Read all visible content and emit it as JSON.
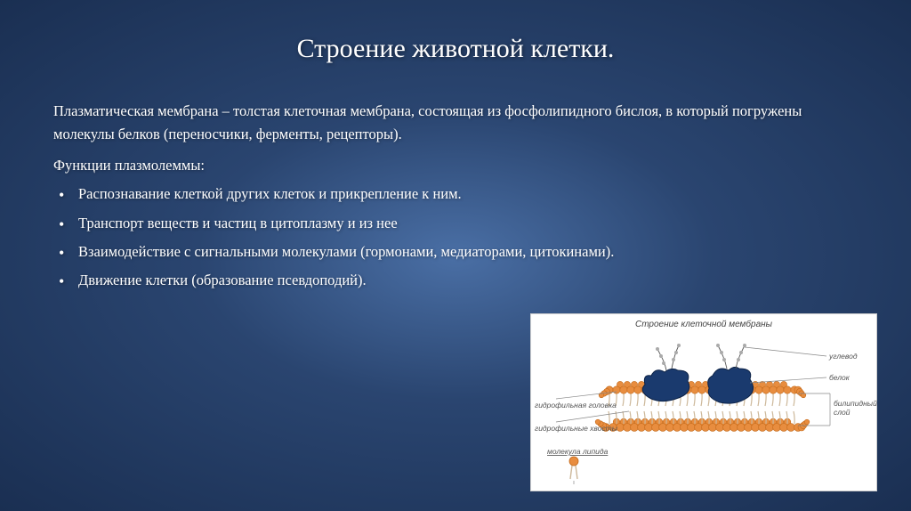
{
  "title": "Строение животной клетки.",
  "paragraph": "Плазматическая мембрана – толстая клеточная мембрана, состоящая из фосфолипидного бислоя, в который погружены молекулы белков (переносчики, ферменты, рецепторы).",
  "functions_label": "Функции плазмолеммы:",
  "bullets": [
    "Распознавание клеткой других клеток и прикрепление к ним.",
    "Транспорт веществ и частиц в цитоплазму и из нее",
    "Взаимодействие с сигнальными молекулами (гормонами, медиаторами, цитокинами).",
    "Движение клетки (образование псевдоподий)."
  ],
  "diagram": {
    "title": "Строение клеточной мембраны",
    "labels": {
      "carb": "углевод",
      "protein": "белок",
      "hydro_head": "гидрофильная головка",
      "hydro_tail": "гидрофильные хвосты",
      "bilipid": "билипидный слой",
      "molecule": "молекула липида"
    },
    "colors": {
      "lipid_head": "#e88d3f",
      "lipid_head_stroke": "#c46a1a",
      "tail": "#cdb89a",
      "protein": "#1a3a6e",
      "protein_stroke": "#0d2347",
      "carb_line": "#555555",
      "carb_dot": "#888888",
      "bg": "#ffffff"
    }
  },
  "style": {
    "title_fontsize": 30,
    "body_fontsize": 16.5,
    "text_color": "#ffffff",
    "bg_gradient_inner": "#4a6fa5",
    "bg_gradient_mid": "#2a4570",
    "bg_gradient_outer": "#1a2f52"
  }
}
